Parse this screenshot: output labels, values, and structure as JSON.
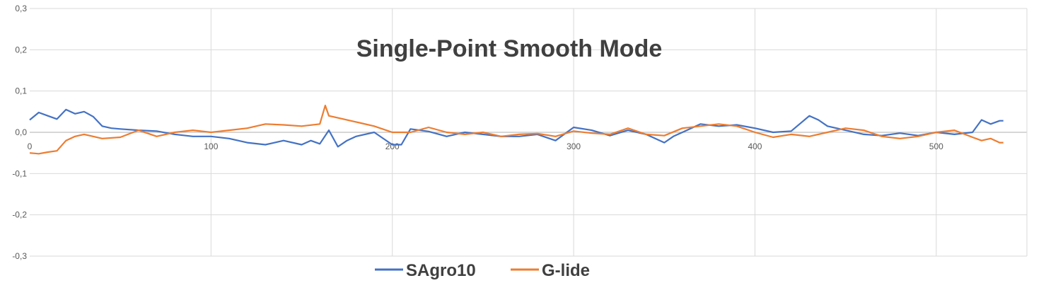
{
  "chart_data": {
    "type": "line",
    "title": "Single-Point Smooth Mode",
    "xlabel": "",
    "ylabel": "",
    "xlim": [
      0,
      550
    ],
    "ylim": [
      -0.3,
      0.3
    ],
    "x_ticks": [
      "0",
      "100",
      "200",
      "300",
      "400",
      "500"
    ],
    "y_ticks": [
      "0,3",
      "0,2",
      "0,1",
      "0,0",
      "-0,1",
      "-0,2",
      "-0,3"
    ],
    "grid": "both",
    "legend": "bottom",
    "series": [
      {
        "name": "SAgro10",
        "color": "#4472C4",
        "x": [
          0,
          5,
          10,
          15,
          20,
          25,
          30,
          35,
          40,
          45,
          50,
          60,
          70,
          80,
          90,
          100,
          110,
          120,
          130,
          140,
          150,
          155,
          160,
          165,
          170,
          175,
          180,
          190,
          200,
          205,
          210,
          220,
          230,
          240,
          250,
          260,
          270,
          280,
          290,
          300,
          310,
          320,
          330,
          340,
          350,
          355,
          360,
          370,
          380,
          390,
          400,
          410,
          420,
          430,
          435,
          440,
          450,
          460,
          470,
          480,
          490,
          500,
          510,
          520,
          525,
          530,
          535,
          537
        ],
        "values": [
          0.03,
          0.048,
          0.04,
          0.032,
          0.055,
          0.045,
          0.05,
          0.038,
          0.015,
          0.01,
          0.008,
          0.005,
          0.003,
          -0.005,
          -0.01,
          -0.01,
          -0.015,
          -0.025,
          -0.03,
          -0.02,
          -0.03,
          -0.02,
          -0.028,
          0.005,
          -0.035,
          -0.02,
          -0.01,
          0.0,
          -0.03,
          -0.03,
          0.008,
          0.002,
          -0.01,
          0.0,
          -0.005,
          -0.01,
          -0.01,
          -0.005,
          -0.02,
          0.012,
          0.005,
          -0.008,
          0.005,
          -0.005,
          -0.025,
          -0.01,
          0.0,
          0.02,
          0.015,
          0.018,
          0.01,
          0.0,
          0.003,
          0.04,
          0.03,
          0.015,
          0.005,
          -0.005,
          -0.008,
          -0.002,
          -0.008,
          0.0,
          -0.005,
          0.0,
          0.03,
          0.02,
          0.028,
          0.028
        ]
      },
      {
        "name": "G-lide",
        "color": "#ED7D31",
        "x": [
          0,
          5,
          10,
          15,
          20,
          25,
          30,
          40,
          50,
          60,
          70,
          80,
          90,
          100,
          110,
          120,
          130,
          140,
          150,
          160,
          163,
          165,
          170,
          180,
          190,
          200,
          210,
          220,
          230,
          240,
          250,
          260,
          270,
          280,
          290,
          300,
          310,
          320,
          330,
          340,
          350,
          360,
          370,
          380,
          390,
          400,
          410,
          420,
          430,
          440,
          450,
          460,
          470,
          480,
          490,
          500,
          510,
          520,
          525,
          530,
          535,
          537
        ],
        "values": [
          -0.05,
          -0.052,
          -0.048,
          -0.045,
          -0.02,
          -0.01,
          -0.005,
          -0.015,
          -0.012,
          0.005,
          -0.01,
          0.0,
          0.005,
          0.0,
          0.005,
          0.01,
          0.02,
          0.018,
          0.015,
          0.02,
          0.065,
          0.04,
          0.035,
          0.025,
          0.015,
          0.0,
          0.0,
          0.012,
          0.0,
          -0.005,
          0.0,
          -0.01,
          -0.005,
          -0.003,
          -0.01,
          0.003,
          -0.002,
          -0.005,
          0.01,
          -0.005,
          -0.008,
          0.01,
          0.015,
          0.02,
          0.015,
          0.0,
          -0.012,
          -0.005,
          -0.01,
          0.0,
          0.01,
          0.005,
          -0.01,
          -0.015,
          -0.01,
          0.0,
          0.005,
          -0.012,
          -0.02,
          -0.015,
          -0.025,
          -0.025
        ]
      }
    ]
  }
}
